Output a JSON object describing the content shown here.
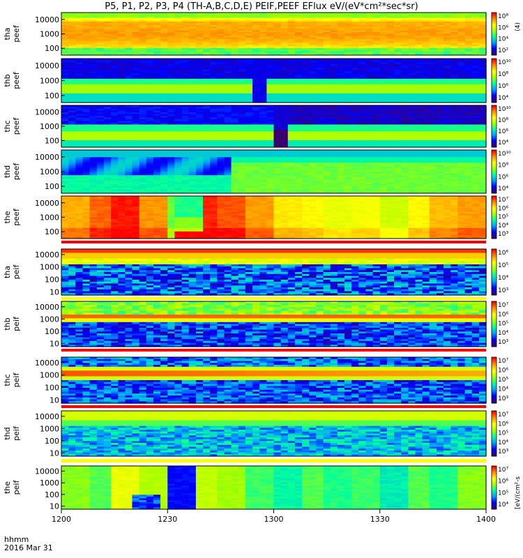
{
  "title": "P5, P1, P2, P3, P4 (TH-A,B,C,D,E) PEIF,PEEF EFlux eV/(eV*cm²*sec*sr)",
  "footer": {
    "time_label": "hhmm",
    "date_label": "2016 Mar 31"
  },
  "colors": {
    "colormap": [
      "#3a0070",
      "#0000ff",
      "#00a0ff",
      "#00ffa0",
      "#a0ff00",
      "#ffff00",
      "#ff9000",
      "#ff0000"
    ],
    "no_data": "#000000",
    "state_bar_red": "#ff0000",
    "state_bar_yellow": "#ffff00"
  },
  "chart_data": {
    "type": "heatmap",
    "x_axis": {
      "ticks": [
        "1200",
        "1230",
        "1300",
        "1330",
        "1400"
      ],
      "range": [
        "1200",
        "1400"
      ]
    },
    "panels": [
      {
        "label": [
          "tha",
          "peef"
        ],
        "y_ticks": [
          "10000",
          "1000",
          "100"
        ],
        "cb_ticks": [
          "10⁸",
          "10⁶",
          "10⁴",
          "10²"
        ],
        "cb_unit": "(4)"
      },
      {
        "label": [
          "thb",
          "peef"
        ],
        "y_ticks": [
          "10000",
          "1000",
          "100"
        ],
        "cb_ticks": [
          "10¹⁰",
          "10⁸",
          "10⁶",
          "10⁴"
        ],
        "cb_unit": ""
      },
      {
        "label": [
          "thc",
          "peef"
        ],
        "y_ticks": [
          "10000",
          "1000",
          "100"
        ],
        "cb_ticks": [
          "10¹⁰",
          "10⁸",
          "10⁶",
          "10⁴"
        ],
        "cb_unit": ""
      },
      {
        "label": [
          "thd",
          "peef"
        ],
        "y_ticks": [
          "10000",
          "1000",
          "100"
        ],
        "cb_ticks": [
          "10¹⁰",
          "10⁸",
          "10⁶",
          "10⁴"
        ],
        "cb_unit": ""
      },
      {
        "label": [
          "the",
          "peef"
        ],
        "y_ticks": [
          "10000",
          "1000",
          "100"
        ],
        "cb_ticks": [
          "10⁷",
          "10⁶",
          "10⁵",
          "10⁴",
          "10³"
        ],
        "cb_unit": ""
      },
      {
        "label": [
          "tha",
          "peif"
        ],
        "y_ticks": [
          "10000",
          "1000",
          "100",
          "10"
        ],
        "cb_ticks": [
          "10⁶",
          "10⁵",
          "10⁴",
          "10³"
        ],
        "cb_unit": ""
      },
      {
        "label": [
          "thb",
          "peif"
        ],
        "y_ticks": [
          "10000",
          "1000",
          "100",
          "10"
        ],
        "cb_ticks": [
          "10⁷",
          "10⁶",
          "10⁵",
          "10⁴",
          "10³"
        ],
        "cb_unit": ""
      },
      {
        "label": [
          "thc",
          "peif"
        ],
        "y_ticks": [
          "10000",
          "1000",
          "100",
          "10"
        ],
        "cb_ticks": [
          "10⁷",
          "10⁶",
          "10⁵",
          "10⁴",
          "10³"
        ],
        "cb_unit": ""
      },
      {
        "label": [
          "thd",
          "peif"
        ],
        "y_ticks": [
          "10000",
          "1000",
          "100",
          "10"
        ],
        "cb_ticks": [
          "10⁷",
          "10⁶",
          "10⁵",
          "10⁴",
          "10³"
        ],
        "cb_unit": ""
      },
      {
        "label": [
          "the",
          "peif"
        ],
        "y_ticks": [
          "10000",
          "1000",
          "100",
          "10"
        ],
        "cb_ticks": [
          "10⁷",
          "10⁶",
          "10⁵",
          "10⁴"
        ],
        "cb_unit": "[eV/(cm²-s"
      }
    ]
  }
}
